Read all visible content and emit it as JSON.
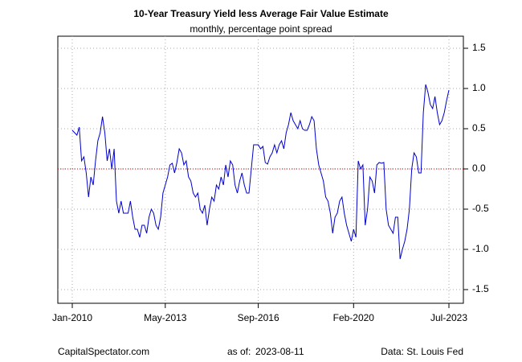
{
  "chart_data": {
    "type": "line",
    "title": "10-Year Treasury Yield less Average Fair Value Estimate",
    "subtitle": "monthly, percentage point spread",
    "footer_left": "CapitalSpectator.com",
    "footer_as_of_label": "as of:",
    "footer_as_of_date": "2023-08-11",
    "footer_right": "Data: St. Louis Fed",
    "categories": [
      "Jan-2010",
      null,
      null,
      null,
      null,
      null,
      null,
      null,
      null,
      null,
      null,
      null,
      null,
      null,
      null,
      null,
      null,
      null,
      null,
      null,
      null,
      null,
      null,
      null,
      null,
      null,
      null,
      null,
      null,
      null,
      null,
      null,
      null,
      null,
      null,
      null,
      null,
      null,
      null,
      null,
      "May-2013",
      null,
      null,
      null,
      null,
      null,
      null,
      null,
      null,
      null,
      null,
      null,
      null,
      null,
      null,
      null,
      null,
      null,
      null,
      null,
      null,
      null,
      null,
      null,
      null,
      null,
      null,
      null,
      null,
      null,
      null,
      null,
      null,
      null,
      null,
      null,
      null,
      null,
      null,
      null,
      "Sep-2016",
      null,
      null,
      null,
      null,
      null,
      null,
      null,
      null,
      null,
      null,
      null,
      null,
      null,
      null,
      null,
      null,
      null,
      null,
      null,
      null,
      null,
      null,
      null,
      null,
      null,
      null,
      null,
      null,
      null,
      null,
      null,
      null,
      null,
      null,
      null,
      null,
      null,
      null,
      null,
      null,
      "Feb-2020",
      null,
      null,
      null,
      null,
      null,
      null,
      null,
      null,
      null,
      null,
      null,
      null,
      null,
      null,
      null,
      null,
      null,
      null,
      null,
      null,
      null,
      null,
      null,
      null,
      null,
      null,
      null,
      null,
      null,
      null,
      null,
      null,
      null,
      null,
      null,
      null,
      null,
      null,
      null,
      null,
      "Jul-2023"
    ],
    "series": [
      {
        "color": "#0000cc",
        "values": [
          0.48,
          0.45,
          0.42,
          0.52,
          0.1,
          0.15,
          -0.05,
          -0.35,
          -0.1,
          -0.2,
          0.1,
          0.35,
          0.45,
          0.65,
          0.45,
          0.1,
          0.25,
          0.0,
          0.25,
          -0.4,
          -0.55,
          -0.4,
          -0.55,
          -0.55,
          -0.55,
          -0.4,
          -0.6,
          -0.75,
          -0.75,
          -0.85,
          -0.7,
          -0.7,
          -0.8,
          -0.6,
          -0.5,
          -0.55,
          -0.7,
          -0.75,
          -0.6,
          -0.3,
          -0.2,
          -0.1,
          0.05,
          0.07,
          -0.05,
          0.08,
          0.25,
          0.2,
          0.05,
          0.1,
          -0.1,
          -0.15,
          -0.3,
          -0.35,
          -0.3,
          -0.5,
          -0.55,
          -0.45,
          -0.7,
          -0.5,
          -0.35,
          -0.4,
          -0.2,
          -0.25,
          -0.1,
          -0.2,
          0.05,
          -0.1,
          0.1,
          0.05,
          -0.2,
          -0.3,
          -0.15,
          -0.05,
          -0.2,
          -0.3,
          -0.3,
          0.0,
          0.3,
          0.3,
          0.3,
          0.25,
          0.28,
          0.08,
          0.06,
          0.15,
          0.2,
          0.3,
          0.2,
          0.3,
          0.35,
          0.25,
          0.45,
          0.55,
          0.7,
          0.6,
          0.55,
          0.5,
          0.6,
          0.5,
          0.48,
          0.48,
          0.55,
          0.65,
          0.6,
          0.25,
          0.05,
          -0.05,
          -0.15,
          -0.35,
          -0.4,
          -0.55,
          -0.8,
          -0.6,
          -0.55,
          -0.4,
          -0.35,
          -0.55,
          -0.7,
          -0.8,
          -0.9,
          -0.75,
          -0.85,
          0.1,
          0.0,
          0.05,
          -0.7,
          -0.5,
          -0.1,
          -0.15,
          -0.3,
          0.05,
          0.08,
          0.07,
          0.08,
          -0.5,
          -0.7,
          -0.75,
          -0.8,
          -0.6,
          -0.6,
          -1.12,
          -1.0,
          -0.9,
          -0.75,
          -0.5,
          0.0,
          0.2,
          0.15,
          -0.05,
          -0.05,
          0.7,
          1.05,
          0.95,
          0.8,
          0.75,
          0.9,
          0.7,
          0.55,
          0.6,
          0.7,
          0.85,
          0.98
        ]
      }
    ],
    "ylim": [
      -1.67,
      1.65
    ],
    "yticks": [
      -1.5,
      {
        "value": -1,
        "label": "-1.0"
      },
      -0.5,
      {
        "value": 0,
        "label": "0.0"
      },
      0.5,
      {
        "value": 1,
        "label": "1.0"
      },
      1.5
    ],
    "y_axis_side": "right",
    "grid": true,
    "reference_line": 0,
    "reference_line_color": "#cc0000"
  }
}
